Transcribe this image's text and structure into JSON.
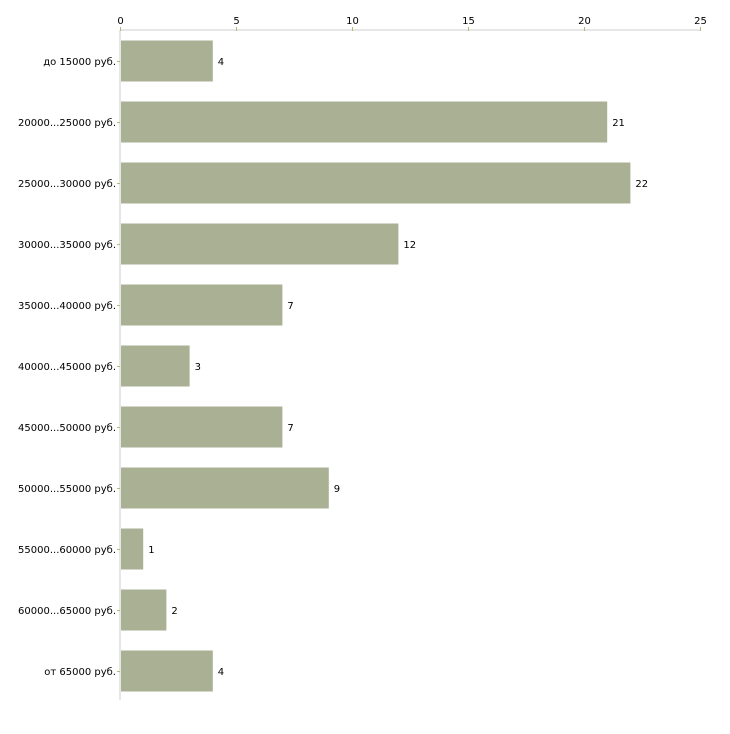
{
  "chart_data": {
    "type": "bar",
    "orientation": "horizontal",
    "title": "",
    "xlabel": "",
    "ylabel": "",
    "xlim": [
      0,
      25
    ],
    "x_ticks": [
      0,
      5,
      10,
      15,
      20,
      25
    ],
    "x_tick_labels": [
      "0",
      "5",
      "10",
      "15",
      "20",
      "25"
    ],
    "categories": [
      "до 15000 руб.",
      "20000...25000 руб.",
      "25000...30000 руб.",
      "30000...35000 руб.",
      "35000...40000 руб.",
      "40000...45000 руб.",
      "45000...50000 руб.",
      "50000...55000 руб.",
      "55000...60000 руб.",
      "60000...65000 руб.",
      "от 65000 руб."
    ],
    "values": [
      4,
      21,
      22,
      12,
      7,
      3,
      7,
      9,
      1,
      2,
      4
    ],
    "value_labels": [
      "4",
      "21",
      "22",
      "12",
      "7",
      "3",
      "7",
      "9",
      "1",
      "2",
      "4"
    ],
    "grid": false,
    "legend": "none",
    "colors": {
      "bar": "#aab094",
      "axis": "#cccccc",
      "tick": "#b5b87a"
    }
  }
}
